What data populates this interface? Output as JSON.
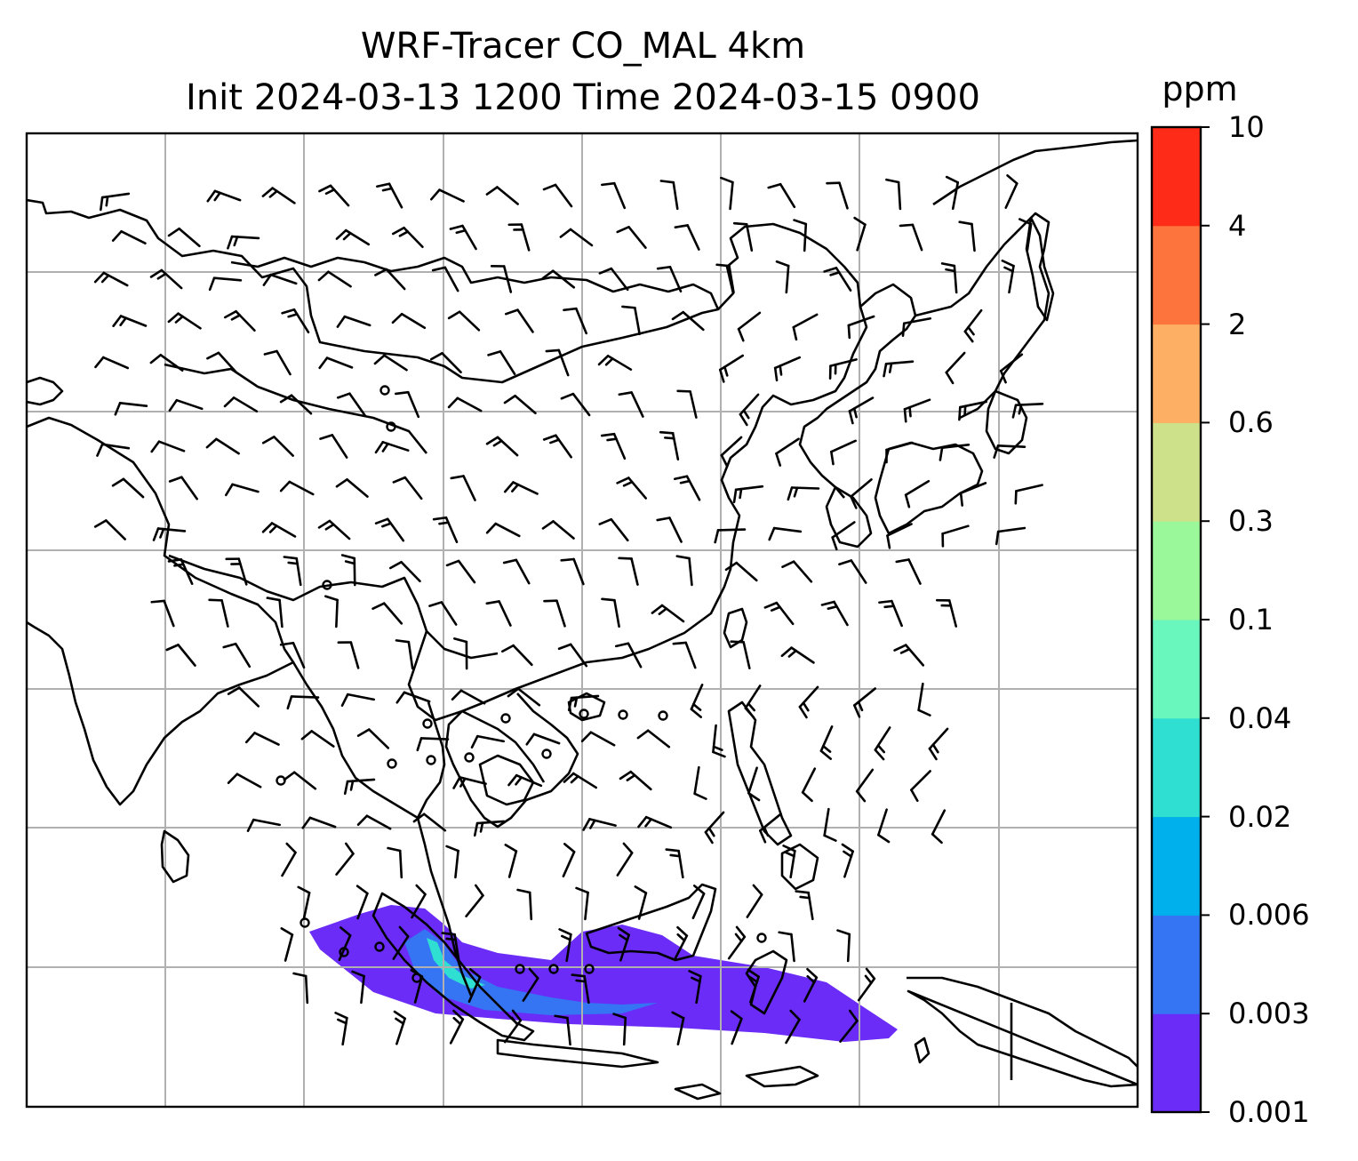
{
  "title": {
    "line1": "WRF-Tracer CO_MAL 4km",
    "line2": "Init 2024-03-13 1200 Time 2024-03-15 0900"
  },
  "colorbar": {
    "unit": "ppm",
    "levels": [
      "0.001",
      "0.003",
      "0.006",
      "0.02",
      "0.04",
      "0.1",
      "0.3",
      "0.6",
      "2",
      "4",
      "10"
    ],
    "colors": [
      "#6a2cf6",
      "#3575f4",
      "#00b0ec",
      "#2fdfd2",
      "#6af7bd",
      "#9af79a",
      "#cde08a",
      "#fdb063",
      "#fe743d",
      "#fd2b17"
    ]
  },
  "map": {
    "tracer_plume_color": "#6a2cf6",
    "tracer_plume_secondary_color": "#3575f4",
    "tracer_plume_core_color": "#2fdfd2",
    "gridline_color": "#b0b0b0",
    "coastline_color": "#000000",
    "wind_barb_color": "#000000"
  }
}
